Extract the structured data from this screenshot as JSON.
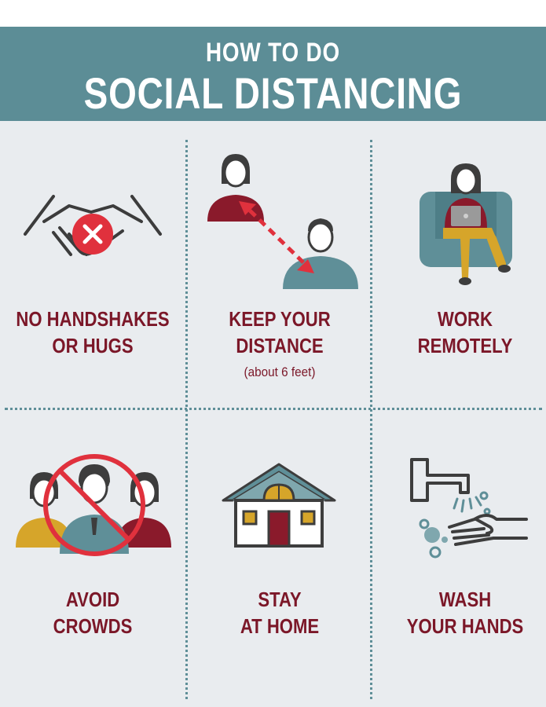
{
  "header": {
    "subtitle": "HOW TO DO",
    "title": "SOCIAL DISTANCING"
  },
  "tips": [
    {
      "line1": "NO HANDSHAKES",
      "line2": "OR HUGS",
      "icon": "no-handshake-icon"
    },
    {
      "line1": "KEEP YOUR",
      "line2": "DISTANCE",
      "note": "(about 6 feet)",
      "icon": "keep-distance-icon"
    },
    {
      "line1": "WORK",
      "line2": "REMOTELY",
      "icon": "work-remotely-icon"
    },
    {
      "line1": "AVOID",
      "line2": "CROWDS",
      "icon": "no-crowd-icon"
    },
    {
      "line1": "STAY",
      "line2": "AT HOME",
      "icon": "house-icon"
    },
    {
      "line1": "WASH",
      "line2": "YOUR HANDS",
      "icon": "hand-washing-icon"
    }
  ],
  "colors": {
    "banner": "#5c8d96",
    "maroon": "#7b1728",
    "red": "#e0313d",
    "teal": "#5f8f98",
    "gold": "#d6a52a",
    "background": "#e9ecef"
  }
}
